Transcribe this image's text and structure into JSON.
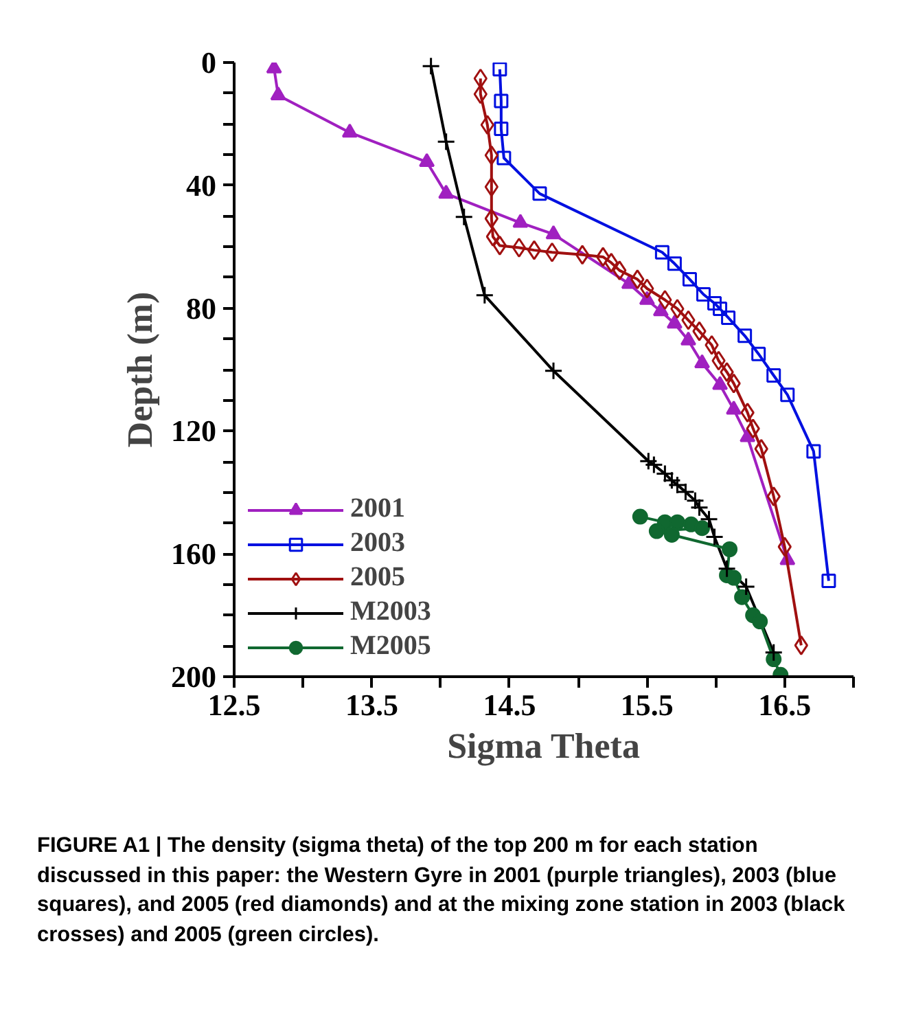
{
  "chart_data": {
    "type": "line",
    "xlabel": "Sigma Theta",
    "ylabel": "Depth (m)",
    "xlim": [
      12.5,
      17.0
    ],
    "ylim": [
      200,
      0
    ],
    "xticks": [
      12.5,
      {
        "value": 13.0,
        "label": null
      },
      13.5,
      {
        "value": 14.0,
        "label": null
      },
      14.5,
      {
        "value": 15.0,
        "label": null
      },
      15.5,
      {
        "value": 16.0,
        "label": null
      },
      16.5,
      {
        "value": 17.0,
        "label": null
      }
    ],
    "yticks": [
      0,
      {
        "value": 10,
        "label": null
      },
      {
        "value": 20,
        "label": null
      },
      {
        "value": 30,
        "label": null
      },
      40,
      {
        "value": 50,
        "label": null
      },
      {
        "value": 60,
        "label": null
      },
      {
        "value": 70,
        "label": null
      },
      80,
      {
        "value": 90,
        "label": null
      },
      {
        "value": 100,
        "label": null
      },
      {
        "value": 110,
        "label": null
      },
      120,
      {
        "value": 130,
        "label": null
      },
      {
        "value": 140,
        "label": null
      },
      {
        "value": 150,
        "label": null
      },
      160,
      {
        "value": 170,
        "label": null
      },
      {
        "value": 180,
        "label": null
      },
      {
        "value": 190,
        "label": null
      },
      200
    ],
    "grid": false,
    "legend": "bottom left",
    "line_style": "solid",
    "series": [
      {
        "name": "2001",
        "color": "#a020c0",
        "marker": "triangle",
        "x": [
          12.79,
          12.82,
          13.34,
          13.9,
          14.04,
          14.58,
          14.82,
          15.37,
          15.5,
          15.6,
          15.7,
          15.8,
          15.9,
          16.03,
          16.13,
          16.23,
          16.52
        ],
        "values": [
          1.9,
          10.7,
          22.8,
          32.4,
          42.7,
          52.2,
          55.9,
          72.1,
          77.3,
          81,
          85,
          90.5,
          97.9,
          105,
          113,
          122,
          162
        ]
      },
      {
        "name": "2003",
        "color": "#0010e0",
        "marker": "square",
        "x": [
          14.43,
          14.44,
          14.44,
          14.46,
          14.72,
          15.61,
          15.7,
          15.81,
          15.91,
          15.99,
          16.03,
          16.09,
          16.21,
          16.31,
          16.42,
          16.52,
          16.71,
          16.82
        ],
        "values": [
          2.2,
          12.5,
          21.6,
          31.1,
          42.7,
          61.8,
          65.5,
          70.6,
          75.5,
          78.4,
          80.2,
          83.1,
          89,
          94.9,
          101.9,
          108.2,
          126.6,
          168.8
        ]
      },
      {
        "name": "2005",
        "color": "#a01010",
        "marker": "diamond",
        "x": [
          14.29,
          14.29,
          14.34,
          14.37,
          14.37,
          14.37,
          14.38,
          14.43,
          14.57,
          14.68,
          14.81,
          15.03,
          15.18,
          15.24,
          15.3,
          15.43,
          15.5,
          15.63,
          15.72,
          15.8,
          15.88,
          15.97,
          16.02,
          16.08,
          16.13,
          16.23,
          16.27,
          16.33,
          16.42,
          16.5,
          16.62
        ],
        "values": [
          5.2,
          10.3,
          20.3,
          30.2,
          40.5,
          50.8,
          56.7,
          59.6,
          60.3,
          61.1,
          61.8,
          62.6,
          63.3,
          65.2,
          67.7,
          70.6,
          73.6,
          77.3,
          80.2,
          83.9,
          87.5,
          92,
          97.1,
          100.8,
          104.5,
          114,
          119.2,
          125.8,
          141.3,
          157.7,
          189.8
        ]
      },
      {
        "name": "M2003",
        "color": "#000000",
        "marker": "cross",
        "x": [
          13.93,
          14.04,
          14.17,
          14.32,
          14.82,
          15.51,
          15.55,
          15.63,
          15.68,
          15.72,
          15.78,
          15.85,
          15.88,
          15.95,
          15.99,
          16.08,
          16.22,
          16.42
        ],
        "values": [
          1.2,
          25.8,
          50.3,
          75.8,
          100.4,
          129.8,
          131,
          133.9,
          136.1,
          137.6,
          139.8,
          142.7,
          144.9,
          148.7,
          154.5,
          164.8,
          170.7,
          192.1
        ]
      },
      {
        "name": "M2005",
        "color": "#106830",
        "marker": "circle",
        "x": [
          15.45,
          15.63,
          15.72,
          15.82,
          15.9,
          15.57,
          15.68,
          16.1,
          16.08,
          16.13,
          16.19,
          16.27,
          16.32,
          16.42,
          16.47
        ],
        "values": [
          147.9,
          149.7,
          149.7,
          150.4,
          151.6,
          152.6,
          153.8,
          158.5,
          167,
          167.8,
          174.1,
          180,
          182,
          194.3,
          199.4
        ]
      }
    ],
    "annotations": [
      "FIGURE A1 | The density (sigma theta) of the top 200 m for each station discussed in this paper: the Western Gyre in 2001 (purple triangles), 2003 (blue squares), and 2005 (red diamonds) and at the mixing zone station in 2003 (black crosses) and 2005 (green circles)."
    ]
  }
}
